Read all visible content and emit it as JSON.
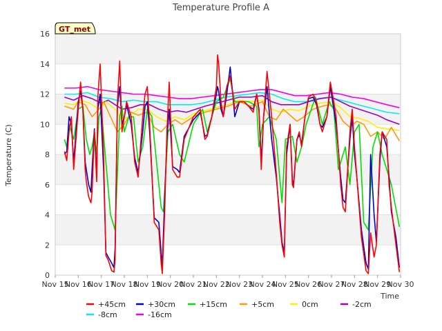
{
  "chart_data": {
    "type": "line",
    "title": "Temperature Profile A",
    "xlabel": "Time",
    "ylabel": "Temperature (C)",
    "badge": "GT_met",
    "xlim": [
      15,
      30
    ],
    "ylim": [
      0,
      16
    ],
    "x_ticks": [
      15,
      16,
      17,
      18,
      19,
      20,
      21,
      22,
      23,
      24,
      25,
      26,
      27,
      28,
      29,
      30
    ],
    "x_tick_labels": [
      "Nov 15",
      "Nov 16",
      "Nov 17",
      "Nov 18",
      "Nov 19",
      "Nov 20",
      "Nov 21",
      "Nov 22",
      "Nov 23",
      "Nov 24",
      "Nov 25",
      "Nov 26",
      "Nov 27",
      "Nov 28",
      "Nov 29",
      "Nov 30"
    ],
    "y_ticks": [
      0,
      2,
      4,
      6,
      8,
      10,
      12,
      14,
      16
    ],
    "y_tick_labels": [
      "0",
      "2",
      "4",
      "6",
      "8",
      "10",
      "12",
      "14",
      "16"
    ],
    "grid": "horizontal bands",
    "legend_position": "bottom",
    "x_units": "day of November",
    "series": [
      {
        "name": "+45cm",
        "color": "#ff0000",
        "x": [
          15.4,
          15.5,
          15.6,
          15.7,
          15.8,
          16.0,
          16.1,
          16.2,
          16.3,
          16.35,
          16.45,
          16.55,
          16.6,
          16.7,
          16.8,
          16.85,
          16.95,
          17.1,
          17.2,
          17.3,
          17.45,
          17.55,
          17.6,
          17.7,
          17.8,
          17.9,
          18.0,
          18.1,
          18.3,
          18.45,
          18.6,
          18.8,
          18.9,
          19.0,
          19.1,
          19.3,
          19.5,
          19.6,
          19.65,
          19.75,
          19.85,
          19.95,
          20.1,
          20.3,
          20.4,
          20.6,
          21.0,
          21.3,
          21.5,
          21.6,
          21.8,
          22.0,
          22.05,
          22.1,
          22.2,
          22.3,
          22.45,
          22.6,
          22.8,
          23.0,
          23.2,
          23.4,
          23.6,
          23.75,
          23.85,
          23.95,
          24.05,
          24.2,
          24.4,
          24.6,
          24.75,
          24.85,
          24.95,
          25.05,
          25.2,
          25.3,
          25.35,
          25.5,
          25.6,
          25.7,
          25.85,
          26.0,
          26.2,
          26.35,
          26.5,
          26.6,
          26.8,
          26.95,
          27.1,
          27.2,
          27.4,
          27.5,
          27.6,
          27.8,
          27.9,
          28.0,
          28.1,
          28.3,
          28.5,
          28.6,
          28.7,
          28.85,
          28.95,
          29.1,
          29.2,
          29.4,
          29.5,
          29.6,
          29.8,
          29.95
        ],
        "y": [
          8.2,
          7.6,
          9.5,
          10.5,
          7.0,
          11.0,
          12.8,
          11.0,
          7.0,
          6.2,
          5.2,
          4.8,
          5.5,
          9.6,
          6.2,
          11.8,
          14.0,
          8.0,
          1.3,
          1.0,
          0.3,
          0.2,
          1.0,
          11.5,
          14.2,
          9.5,
          10.5,
          11.5,
          10.5,
          7.5,
          6.5,
          10.5,
          12.0,
          12.5,
          10.0,
          3.5,
          3.0,
          0.8,
          0.1,
          4.0,
          9.5,
          12.8,
          7.0,
          6.5,
          6.5,
          9.0,
          10.5,
          11.0,
          9.0,
          9.2,
          10.5,
          12.5,
          14.6,
          14.0,
          11.5,
          10.5,
          12.5,
          13.2,
          11.0,
          11.5,
          11.5,
          11.2,
          10.8,
          12.0,
          10.8,
          7.0,
          10.5,
          13.5,
          10.5,
          6.8,
          3.5,
          2.0,
          1.2,
          8.5,
          10.0,
          6.0,
          5.8,
          9.0,
          9.5,
          8.5,
          10.5,
          11.8,
          12.0,
          11.5,
          10.0,
          9.5,
          10.5,
          12.8,
          11.5,
          10.5,
          6.0,
          4.5,
          4.2,
          9.5,
          11.0,
          8.5,
          6.5,
          2.5,
          0.3,
          0.1,
          2.8,
          1.2,
          2.0,
          8.0,
          9.5,
          9.0,
          6.0,
          4.5,
          2.0,
          0.2
        ]
      },
      {
        "name": "+30cm",
        "color": "#0000cc",
        "x": [
          15.4,
          15.5,
          15.6,
          15.7,
          15.8,
          16.0,
          16.1,
          16.2,
          16.3,
          16.35,
          16.45,
          16.55,
          16.6,
          16.7,
          16.8,
          16.85,
          16.95,
          17.1,
          17.2,
          17.3,
          17.45,
          17.55,
          17.6,
          17.7,
          17.8,
          17.9,
          18.0,
          18.1,
          18.3,
          18.45,
          18.6,
          18.8,
          18.9,
          19.0,
          19.1,
          19.3,
          19.5,
          19.6,
          19.65,
          19.75,
          19.85,
          19.95,
          20.1,
          20.3,
          20.4,
          20.6,
          21.0,
          21.3,
          21.5,
          21.6,
          21.8,
          22.0,
          22.05,
          22.1,
          22.2,
          22.3,
          22.45,
          22.6,
          22.8,
          23.0,
          23.2,
          23.4,
          23.6,
          23.75,
          23.85,
          23.95,
          24.05,
          24.2,
          24.4,
          24.6,
          24.75,
          24.85,
          24.95,
          25.05,
          25.2,
          25.3,
          25.35,
          25.5,
          25.6,
          25.7,
          25.85,
          26.0,
          26.2,
          26.35,
          26.5,
          26.6,
          26.8,
          26.95,
          27.1,
          27.2,
          27.4,
          27.5,
          27.6,
          27.8,
          27.9,
          28.0,
          28.1,
          28.3,
          28.5,
          28.6,
          28.7,
          28.85,
          28.95,
          29.1,
          29.2,
          29.4,
          29.5,
          29.6,
          29.8,
          29.95
        ],
        "y": [
          8.0,
          8.2,
          10.5,
          10.0,
          7.5,
          11.5,
          12.2,
          11.0,
          7.5,
          7.0,
          6.0,
          5.5,
          7.0,
          9.7,
          6.5,
          11.0,
          12.0,
          7.0,
          1.5,
          1.2,
          0.8,
          0.5,
          1.8,
          11.2,
          12.5,
          10.0,
          10.5,
          11.3,
          10.0,
          7.8,
          6.8,
          9.5,
          11.2,
          11.5,
          9.5,
          3.8,
          3.5,
          1.5,
          0.6,
          5.0,
          9.0,
          11.0,
          7.2,
          7.0,
          6.8,
          9.2,
          10.3,
          10.8,
          9.2,
          9.3,
          10.5,
          12.0,
          12.5,
          12.2,
          11.0,
          10.5,
          12.0,
          13.8,
          10.5,
          11.5,
          11.5,
          11.2,
          11.0,
          12.0,
          11.0,
          7.5,
          10.5,
          12.5,
          9.0,
          6.5,
          4.0,
          2.2,
          1.5,
          8.0,
          10.0,
          6.3,
          6.0,
          9.0,
          9.3,
          8.7,
          10.5,
          11.7,
          11.8,
          11.3,
          10.0,
          9.8,
          10.5,
          12.5,
          11.0,
          10.0,
          6.5,
          5.0,
          4.8,
          9.0,
          10.5,
          8.0,
          6.5,
          3.0,
          0.8,
          0.4,
          8.0,
          4.0,
          2.2,
          7.5,
          9.5,
          8.5,
          6.5,
          4.2,
          2.5,
          0.5
        ]
      },
      {
        "name": "+15cm",
        "color": "#00dd00",
        "x": [
          15.4,
          15.5,
          15.6,
          15.8,
          16.0,
          16.2,
          16.35,
          16.5,
          16.6,
          16.7,
          16.8,
          16.9,
          17.0,
          17.2,
          17.4,
          17.6,
          17.8,
          17.9,
          18.0,
          18.2,
          18.4,
          18.6,
          18.8,
          19.0,
          19.2,
          19.5,
          19.6,
          19.7,
          19.9,
          20.1,
          20.4,
          20.6,
          21.0,
          21.4,
          21.6,
          22.0,
          22.3,
          22.6,
          22.8,
          23.0,
          23.4,
          23.75,
          23.85,
          24.0,
          24.3,
          24.6,
          24.85,
          25.0,
          25.3,
          25.5,
          25.7,
          25.9,
          26.3,
          26.6,
          26.9,
          27.1,
          27.3,
          27.6,
          27.8,
          28.0,
          28.2,
          28.4,
          28.6,
          28.8,
          29.0,
          29.2,
          29.4,
          29.6,
          29.95
        ],
        "y": [
          9.0,
          8.5,
          10.0,
          9.0,
          11.0,
          11.2,
          9.0,
          8.0,
          8.5,
          9.5,
          8.0,
          10.5,
          11.0,
          7.5,
          4.0,
          3.0,
          10.5,
          11.2,
          9.5,
          10.5,
          10.5,
          7.5,
          8.5,
          11.0,
          10.5,
          6.0,
          4.5,
          4.2,
          9.5,
          10.0,
          8.0,
          7.5,
          10.0,
          11.0,
          9.5,
          11.5,
          11.8,
          13.0,
          11.5,
          11.5,
          11.5,
          11.2,
          8.5,
          10.0,
          10.5,
          9.0,
          4.8,
          9.0,
          9.2,
          7.5,
          8.5,
          10.0,
          11.8,
          10.0,
          11.5,
          11.0,
          7.0,
          8.5,
          6.0,
          9.5,
          10.0,
          3.5,
          3.0,
          8.5,
          9.5,
          8.0,
          7.0,
          6.0,
          3.2
        ]
      },
      {
        "name": "+5cm",
        "color": "#ff9900",
        "x": [
          15.4,
          15.8,
          16.0,
          16.3,
          16.6,
          16.9,
          17.1,
          17.4,
          17.7,
          18.0,
          18.3,
          18.6,
          19.0,
          19.3,
          19.6,
          19.9,
          20.2,
          20.5,
          21.0,
          21.5,
          22.0,
          22.5,
          23.0,
          23.5,
          24.0,
          24.3,
          24.6,
          24.9,
          25.2,
          25.5,
          25.8,
          26.2,
          26.6,
          26.9,
          27.2,
          27.5,
          27.8,
          28.1,
          28.4,
          28.7,
          29.0,
          29.3,
          29.6,
          29.95
        ],
        "y": [
          11.2,
          11.0,
          11.5,
          11.3,
          10.5,
          11.0,
          11.5,
          10.5,
          9.5,
          10.0,
          10.8,
          10.6,
          10.8,
          9.8,
          9.5,
          10.0,
          10.3,
          10.0,
          10.5,
          10.8,
          11.0,
          11.2,
          11.5,
          11.2,
          11.5,
          10.5,
          10.3,
          11.0,
          10.6,
          10.2,
          10.5,
          11.0,
          11.2,
          11.3,
          11.0,
          10.2,
          9.8,
          10.2,
          10.0,
          9.2,
          9.5,
          9.0,
          9.8,
          8.9
        ]
      },
      {
        "name": "0cm",
        "color": "#ffee00",
        "x": [
          15.4,
          15.8,
          16.1,
          16.5,
          16.9,
          17.2,
          17.6,
          17.9,
          18.2,
          18.6,
          19.0,
          19.4,
          19.8,
          20.2,
          20.6,
          21.0,
          21.5,
          22.0,
          22.5,
          23.0,
          23.5,
          24.0,
          24.4,
          24.8,
          25.2,
          25.6,
          26.0,
          26.5,
          27.0,
          27.4,
          27.8,
          28.2,
          28.6,
          29.0,
          29.4,
          29.95
        ],
        "y": [
          11.4,
          11.3,
          11.6,
          11.4,
          11.0,
          11.5,
          11.0,
          10.3,
          10.5,
          11.0,
          11.0,
          10.5,
          10.2,
          10.5,
          10.3,
          10.7,
          10.9,
          11.1,
          11.3,
          11.6,
          11.5,
          11.6,
          11.0,
          10.8,
          11.0,
          10.9,
          11.2,
          11.4,
          11.5,
          11.1,
          10.5,
          10.4,
          10.2,
          9.8,
          9.7,
          9.6
        ]
      },
      {
        "name": "-2cm",
        "color": "#9900cc",
        "x": [
          15.4,
          15.8,
          16.2,
          16.6,
          17.0,
          17.3,
          17.6,
          17.9,
          18.3,
          18.7,
          19.1,
          19.5,
          19.9,
          20.3,
          20.7,
          21.1,
          21.5,
          22.0,
          22.5,
          23.0,
          23.5,
          24.0,
          24.4,
          24.8,
          25.2,
          25.6,
          26.0,
          26.5,
          27.0,
          27.4,
          27.8,
          28.2,
          28.6,
          29.0,
          29.4,
          29.95
        ],
        "y": [
          11.8,
          11.6,
          11.9,
          11.7,
          11.4,
          11.6,
          11.3,
          11.0,
          11.1,
          11.3,
          11.3,
          11.0,
          10.8,
          10.9,
          10.8,
          11.0,
          11.2,
          11.4,
          11.6,
          11.8,
          11.8,
          11.9,
          11.5,
          11.3,
          11.3,
          11.3,
          11.5,
          11.7,
          11.8,
          11.5,
          11.2,
          11.0,
          10.8,
          10.6,
          10.3,
          10.0
        ]
      },
      {
        "name": "-8cm",
        "color": "#00eeee",
        "x": [
          15.4,
          15.9,
          16.4,
          16.9,
          17.4,
          17.9,
          18.4,
          18.9,
          19.4,
          19.9,
          20.4,
          20.9,
          21.4,
          21.9,
          22.4,
          22.9,
          23.4,
          23.9,
          24.4,
          24.9,
          25.4,
          25.9,
          26.4,
          26.9,
          27.4,
          27.9,
          28.4,
          28.9,
          29.4,
          29.95
        ],
        "y": [
          12.0,
          12.0,
          12.1,
          11.8,
          11.7,
          11.5,
          11.6,
          11.5,
          11.5,
          11.3,
          11.3,
          11.3,
          11.4,
          11.6,
          11.8,
          11.9,
          12.0,
          12.1,
          12.0,
          11.7,
          11.5,
          11.5,
          11.7,
          11.8,
          11.6,
          11.4,
          11.2,
          11.0,
          10.8,
          10.7
        ]
      },
      {
        "name": "-16cm",
        "color": "#ee00ee",
        "x": [
          15.4,
          15.9,
          16.4,
          16.9,
          17.4,
          17.9,
          18.4,
          18.9,
          19.4,
          19.9,
          20.4,
          20.9,
          21.4,
          21.9,
          22.4,
          22.9,
          23.4,
          23.9,
          24.4,
          24.9,
          25.4,
          25.9,
          26.4,
          26.9,
          27.4,
          27.9,
          28.4,
          28.9,
          29.4,
          29.95
        ],
        "y": [
          12.4,
          12.4,
          12.5,
          12.3,
          12.2,
          12.1,
          12.0,
          12.0,
          11.9,
          11.8,
          11.7,
          11.7,
          11.8,
          11.9,
          12.0,
          12.1,
          12.2,
          12.3,
          12.3,
          12.1,
          11.9,
          11.9,
          12.0,
          12.1,
          12.0,
          11.8,
          11.7,
          11.5,
          11.3,
          11.1
        ]
      }
    ]
  }
}
